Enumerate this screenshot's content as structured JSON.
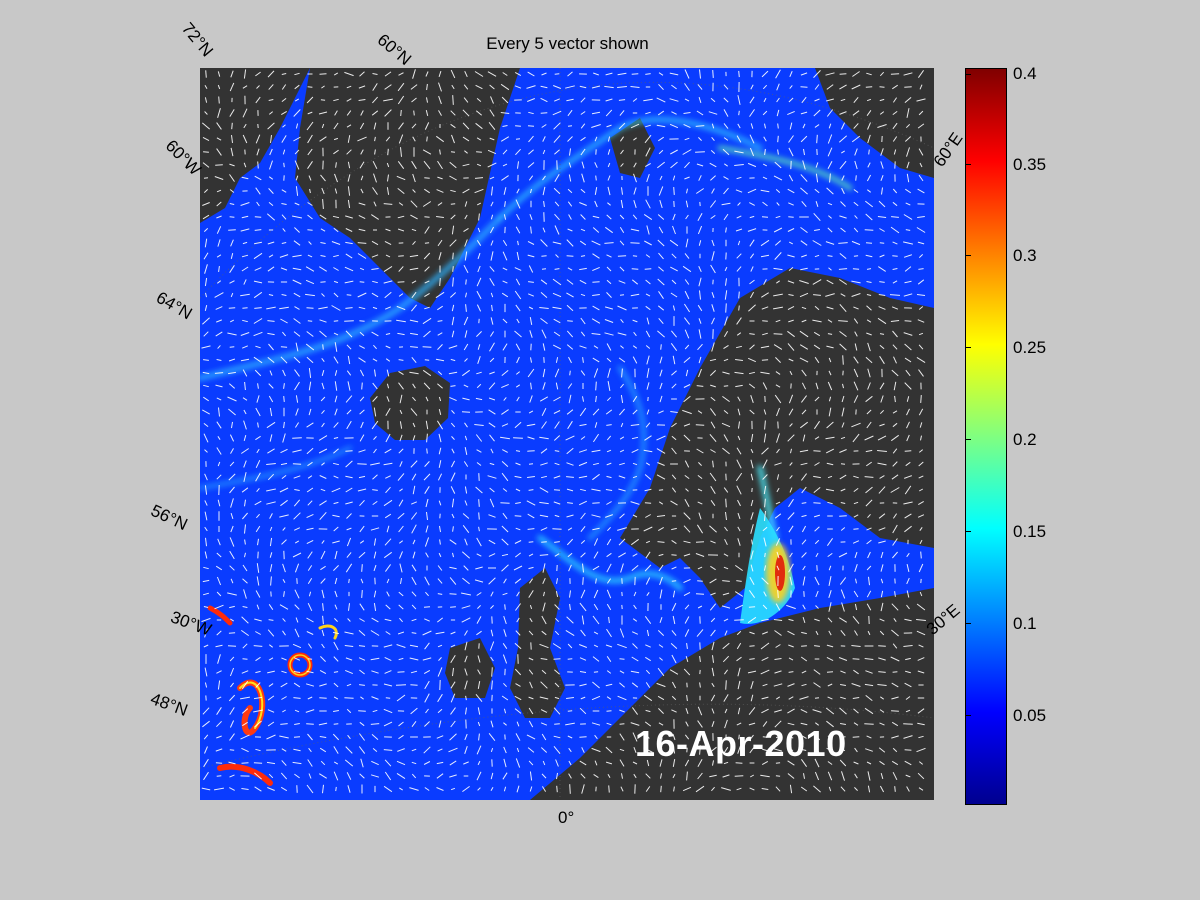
{
  "title": "Every 5 vector shown",
  "date": "16-Apr-2010",
  "lat_labels": [
    "72°N",
    "60°N",
    "64°N",
    "56°N",
    "48°N"
  ],
  "lon_labels": [
    "60°W",
    "30°W",
    "0°",
    "60°E",
    "30°E"
  ],
  "colorbar": {
    "ticks": [
      "0.4",
      "0.35",
      "0.3",
      "0.25",
      "0.2",
      "0.15",
      "0.1",
      "0.05"
    ],
    "min": 0,
    "max": 0.4,
    "colormap": "jet",
    "colors": [
      "#00008f",
      "#0000ff",
      "#0080ff",
      "#00ffff",
      "#80ff80",
      "#ffff00",
      "#ff8000",
      "#ff0000",
      "#800000"
    ]
  },
  "land_color": "#333333",
  "ocean_base_color": "#0a3cff",
  "vector_color": "#ffffff"
}
